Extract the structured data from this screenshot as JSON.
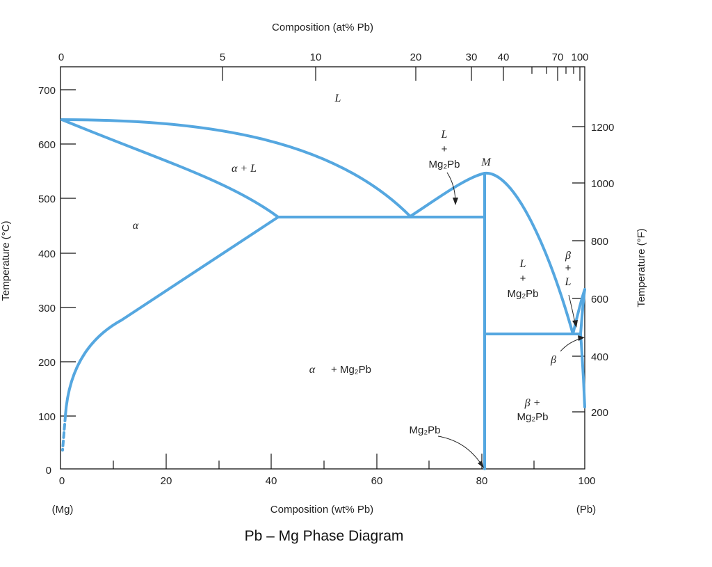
{
  "diagram": {
    "caption": "Pb – Mg Phase Diagram",
    "top_axis": {
      "title": "Composition (at% Pb)",
      "labels": [
        "0",
        "5",
        "10",
        "20",
        "30",
        "40",
        "70",
        "100"
      ]
    },
    "bottom_axis": {
      "title": "Composition (wt% Pb)",
      "labels": [
        "0",
        "20",
        "40",
        "60",
        "80",
        "100"
      ],
      "left_end": "(Mg)",
      "right_end": "(Pb)"
    },
    "left_axis": {
      "title": "Temperature (°C)",
      "labels": [
        "0",
        "100",
        "200",
        "300",
        "400",
        "500",
        "600",
        "700"
      ]
    },
    "right_axis": {
      "title": "Temperature (°F)",
      "labels": [
        "200",
        "400",
        "600",
        "800",
        "1000",
        "1200"
      ]
    },
    "regions": {
      "liquid": "L",
      "alpha_plus_liquid": "α  + L",
      "alpha": "α",
      "liquid_plus_mg2pb_left_l": "L",
      "liquid_plus_mg2pb_left_plus": "+",
      "liquid_plus_mg2pb_left_compound": "Mg₂Pb",
      "congruent_point": "M",
      "liquid_plus_mg2pb_right_l": "L",
      "liquid_plus_mg2pb_right_plus": "+",
      "liquid_plus_mg2pb_right_compound": "Mg₂Pb",
      "beta_plus_liquid_beta": "β",
      "beta_plus_liquid_plus": "+",
      "beta_plus_liquid_l": "L",
      "beta": "β",
      "alpha_plus_mg2pb_alpha": "α",
      "alpha_plus_mg2pb_compound": "+ Mg₂Pb",
      "beta_plus_mg2pb_beta": "β +",
      "beta_plus_mg2pb_compound": "Mg₂Pb",
      "mg2pb_line": "Mg₂Pb"
    },
    "colors": {
      "phase_boundary": "#55a7e0",
      "axes": "#111111"
    }
  }
}
